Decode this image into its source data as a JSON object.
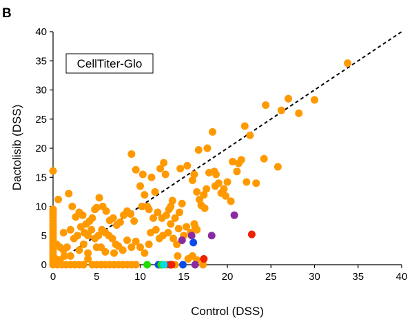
{
  "panel_label": "B",
  "chart_data": {
    "type": "scatter",
    "title": "",
    "xlabel": "Control (DSS)",
    "ylabel": "Dactolisib (DSS)",
    "xlim": [
      0,
      40
    ],
    "ylim": [
      0,
      40
    ],
    "xticks": [
      "0",
      "5",
      "10",
      "15",
      "20",
      "25",
      "30",
      "35",
      "40"
    ],
    "yticks": [
      "0",
      "5",
      "10",
      "15",
      "20",
      "25",
      "30",
      "35",
      "40"
    ],
    "grid": false,
    "legend": {
      "text": "CellTiter-Glo",
      "placement": "top-left"
    },
    "reference_line": {
      "type": "identity",
      "style": "dashed",
      "color": "#000000"
    },
    "colors": {
      "default": "#FF9900",
      "purple": "#8B2BA0",
      "blue": "#0A4BE8",
      "red": "#EE2200",
      "green": "#22DD00",
      "cyan": "#00E0E0"
    },
    "series": [
      {
        "color_key": "default",
        "points": [
          [
            0,
            16.1
          ],
          [
            0,
            9.5
          ],
          [
            0,
            9
          ],
          [
            0,
            8.5
          ],
          [
            0,
            8
          ],
          [
            0,
            7.5
          ],
          [
            0,
            7
          ],
          [
            0,
            6.5
          ],
          [
            0,
            6
          ],
          [
            0,
            5.5
          ],
          [
            0,
            5
          ],
          [
            0,
            4.5
          ],
          [
            0,
            4
          ],
          [
            0,
            3.5
          ],
          [
            0,
            3
          ],
          [
            0,
            2.5
          ],
          [
            0,
            2
          ],
          [
            0,
            1.5
          ],
          [
            0,
            1
          ],
          [
            0,
            0.5
          ],
          [
            0,
            0
          ],
          [
            0.5,
            0
          ],
          [
            1,
            0
          ],
          [
            1.5,
            0
          ],
          [
            2,
            0
          ],
          [
            2.5,
            0
          ],
          [
            3,
            0
          ],
          [
            0.3,
            1
          ],
          [
            0.8,
            0.8
          ],
          [
            1.3,
            1.5
          ],
          [
            0.6,
            11.2
          ],
          [
            1.2,
            5.5
          ],
          [
            1.8,
            12.2
          ],
          [
            2.2,
            10
          ],
          [
            2.6,
            8.2
          ],
          [
            3,
            9
          ],
          [
            3.4,
            8.5
          ],
          [
            3.8,
            7
          ],
          [
            4.2,
            7.5
          ],
          [
            4.5,
            8
          ],
          [
            4.8,
            9.5
          ],
          [
            5,
            9.8
          ],
          [
            5.3,
            11.5
          ],
          [
            5.7,
            10
          ],
          [
            6.1,
            9.2
          ],
          [
            6.5,
            7.6
          ],
          [
            6.9,
            8
          ],
          [
            7.3,
            6.8
          ],
          [
            7.7,
            7.3
          ],
          [
            8.1,
            8.5
          ],
          [
            8.5,
            9.2
          ],
          [
            8.9,
            8.7
          ],
          [
            9.3,
            7.5
          ],
          [
            0.4,
            3.5
          ],
          [
            0.8,
            3
          ],
          [
            1.2,
            2.5
          ],
          [
            1.6,
            3
          ],
          [
            2,
            6
          ],
          [
            2.4,
            4.5
          ],
          [
            2.8,
            5
          ],
          [
            3.2,
            6.5
          ],
          [
            3.6,
            5.5
          ],
          [
            4,
            5
          ],
          [
            4.4,
            6
          ],
          [
            4.8,
            4.5
          ],
          [
            5.2,
            5
          ],
          [
            5.6,
            6
          ],
          [
            6,
            5.5
          ],
          [
            6.4,
            5
          ],
          [
            6.8,
            4.5
          ],
          [
            7.2,
            3.5
          ],
          [
            2,
            1.5
          ],
          [
            3,
            2.5
          ],
          [
            4,
            2
          ],
          [
            5,
            3
          ],
          [
            6,
            2.2
          ],
          [
            7,
            2
          ],
          [
            8,
            2.5
          ],
          [
            9,
            3
          ],
          [
            3.5,
            3.5
          ],
          [
            5.5,
            3
          ],
          [
            7.5,
            3.2
          ],
          [
            8.5,
            4.2
          ],
          [
            9.5,
            4
          ],
          [
            10,
            3
          ],
          [
            10.5,
            2
          ],
          [
            11,
            3.5
          ],
          [
            6.5,
            0
          ],
          [
            7,
            0
          ],
          [
            7.5,
            0
          ],
          [
            8,
            0
          ],
          [
            8.5,
            0
          ],
          [
            9,
            0
          ],
          [
            9.5,
            0
          ],
          [
            6,
            0
          ],
          [
            5.5,
            0
          ],
          [
            5,
            0
          ],
          [
            4.5,
            0
          ],
          [
            4,
            1
          ],
          [
            3.5,
            0
          ],
          [
            9,
            19
          ],
          [
            9.5,
            16.3
          ],
          [
            10.3,
            15.5
          ],
          [
            11.3,
            15
          ],
          [
            11.7,
            12.5
          ],
          [
            12.3,
            16.5
          ],
          [
            12.7,
            17.5
          ],
          [
            12.9,
            15.5
          ],
          [
            13.3,
            9.5
          ],
          [
            13.5,
            10
          ],
          [
            13.7,
            11
          ],
          [
            10,
            13.5
          ],
          [
            10.5,
            12
          ],
          [
            10.2,
            10
          ],
          [
            10.8,
            10
          ],
          [
            11,
            9.5
          ],
          [
            11.5,
            8
          ],
          [
            12,
            9
          ],
          [
            12.5,
            8
          ],
          [
            13,
            8.5
          ],
          [
            13.5,
            7
          ],
          [
            14,
            8
          ],
          [
            14.5,
            9
          ],
          [
            14.8,
            10.5
          ],
          [
            14.6,
            16.5
          ],
          [
            15.4,
            17
          ],
          [
            11.2,
            5.5
          ],
          [
            11.8,
            6
          ],
          [
            12.2,
            4.5
          ],
          [
            12.6,
            5
          ],
          [
            13.2,
            5.5
          ],
          [
            13.8,
            4.5
          ],
          [
            14.2,
            3.5
          ],
          [
            14.4,
            6.2
          ],
          [
            15,
            5
          ],
          [
            15.3,
            6.5
          ],
          [
            15.8,
            5.5
          ],
          [
            16.2,
            7
          ],
          [
            16.5,
            6
          ],
          [
            16.3,
            6.5
          ],
          [
            12.5,
            0
          ],
          [
            13,
            0
          ],
          [
            13.5,
            0
          ],
          [
            14,
            0
          ],
          [
            14.3,
            1.5
          ],
          [
            15.5,
            1
          ],
          [
            16,
            1.5
          ],
          [
            16.5,
            0.8
          ],
          [
            17.2,
            0
          ],
          [
            16.2,
            15.5
          ],
          [
            16,
            14.5
          ],
          [
            16.5,
            12.5
          ],
          [
            16.8,
            11.2
          ],
          [
            17,
            10.2
          ],
          [
            17.3,
            12
          ],
          [
            17.4,
            9.7
          ],
          [
            17.6,
            13
          ],
          [
            17.9,
            15.8
          ],
          [
            17.7,
            20
          ],
          [
            16.7,
            19.7
          ],
          [
            18.3,
            22.8
          ],
          [
            18.5,
            16
          ],
          [
            18.7,
            15.5
          ],
          [
            19,
            14
          ],
          [
            18.6,
            13.5
          ],
          [
            20,
            14.2
          ],
          [
            19.3,
            12.3
          ],
          [
            19.8,
            11.8
          ],
          [
            19.6,
            13
          ],
          [
            20.4,
            10.9
          ],
          [
            20.6,
            17.7
          ],
          [
            21.1,
            16
          ],
          [
            21.3,
            17.4
          ],
          [
            21.6,
            18
          ],
          [
            22,
            23.8
          ],
          [
            22.6,
            22.2
          ],
          [
            22.2,
            14.2
          ],
          [
            23.3,
            14
          ],
          [
            24.2,
            18.2
          ],
          [
            24.4,
            27.4
          ],
          [
            25.8,
            16.8
          ],
          [
            26.2,
            26.5
          ],
          [
            27,
            28.5
          ],
          [
            28.2,
            26
          ],
          [
            30,
            28.3
          ],
          [
            33.8,
            34.6
          ]
        ]
      },
      {
        "color_key": "purple",
        "points": [
          [
            14.8,
            4.2
          ],
          [
            15.9,
            5
          ],
          [
            18.2,
            5
          ],
          [
            20.8,
            8.5
          ],
          [
            13.4,
            0
          ],
          [
            16.3,
            0
          ]
        ]
      },
      {
        "color_key": "blue",
        "points": [
          [
            16.1,
            3.8
          ],
          [
            12.1,
            0
          ],
          [
            14.9,
            0
          ]
        ]
      },
      {
        "color_key": "red",
        "points": [
          [
            22.8,
            5.2
          ],
          [
            17.3,
            1
          ],
          [
            13.6,
            0
          ]
        ]
      },
      {
        "color_key": "green",
        "points": [
          [
            10.8,
            0
          ],
          [
            12.4,
            0
          ]
        ]
      },
      {
        "color_key": "cyan",
        "points": [
          [
            12.7,
            0
          ]
        ]
      }
    ]
  }
}
